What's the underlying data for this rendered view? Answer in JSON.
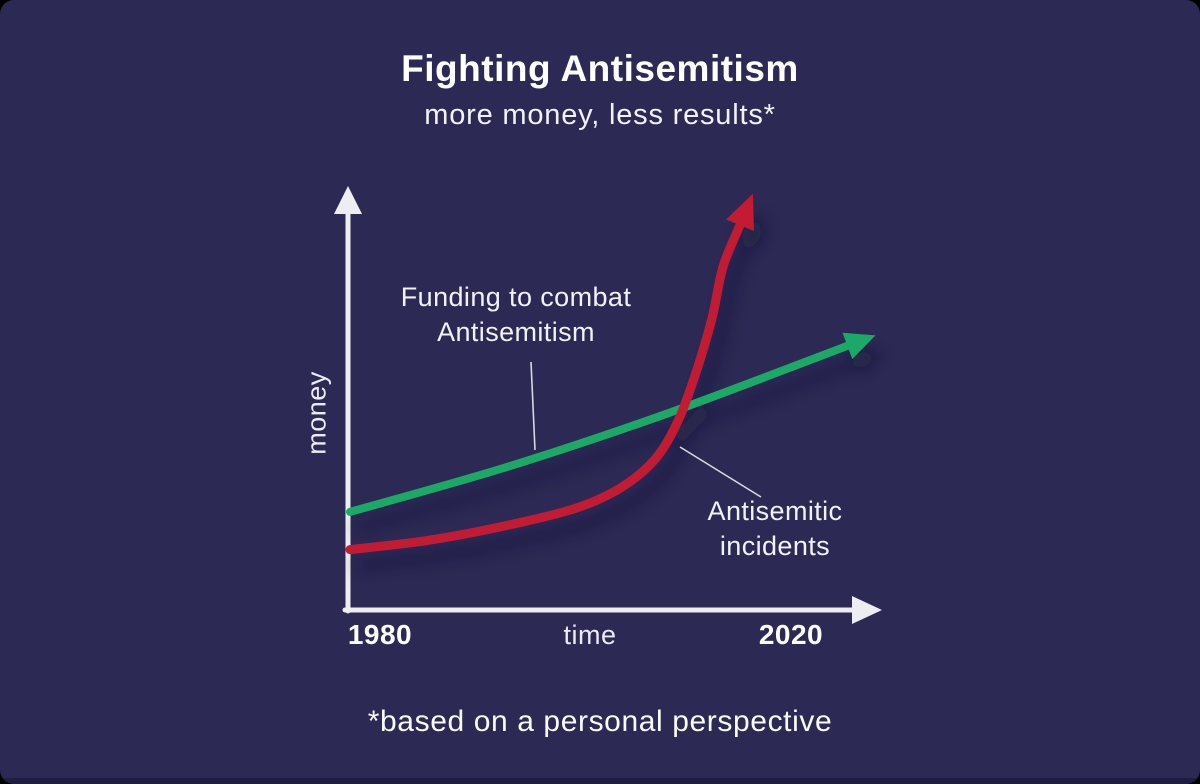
{
  "colors": {
    "background": "#2c2a55",
    "bottom_bar": "#1f1e40",
    "axis": "#ededf2",
    "pointer_line": "#d8d8e0",
    "funding_green": "#1fa968",
    "incidents_red": "#c21f35"
  },
  "chart_data": {
    "type": "line",
    "title": "Fighting Antisemitism",
    "subtitle": "more money, less results*",
    "xlabel": "time",
    "ylabel": "money",
    "x_ticks": [
      "1980",
      "2020"
    ],
    "x_range": [
      1978,
      2024
    ],
    "y_range": [
      0,
      110
    ],
    "grid": false,
    "legend": "none (inline annotation labels pointing at lines)",
    "footnote": "*based on a personal perspective",
    "series": [
      {
        "id": "funding",
        "name": "Funding to combat Antisemitism",
        "color": "#1fa968",
        "shape": "steady near-straight rising line ending in arrowhead",
        "x": [
          1978,
          1992,
          2006,
          2022
        ],
        "values": [
          26,
          38,
          52,
          70
        ]
      },
      {
        "id": "incidents",
        "name": "Antisemitic incidents",
        "color": "#c21f35",
        "shape": "slow rise then exponential spike ending in arrowhead",
        "x": [
          1978,
          1985,
          1992,
          1998,
          2002,
          2005,
          2007,
          2008.5,
          2010,
          2011,
          2012.5
        ],
        "values": [
          16,
          18.5,
          22.5,
          27,
          32.5,
          40,
          50,
          62,
          77,
          91,
          102
        ]
      }
    ]
  }
}
